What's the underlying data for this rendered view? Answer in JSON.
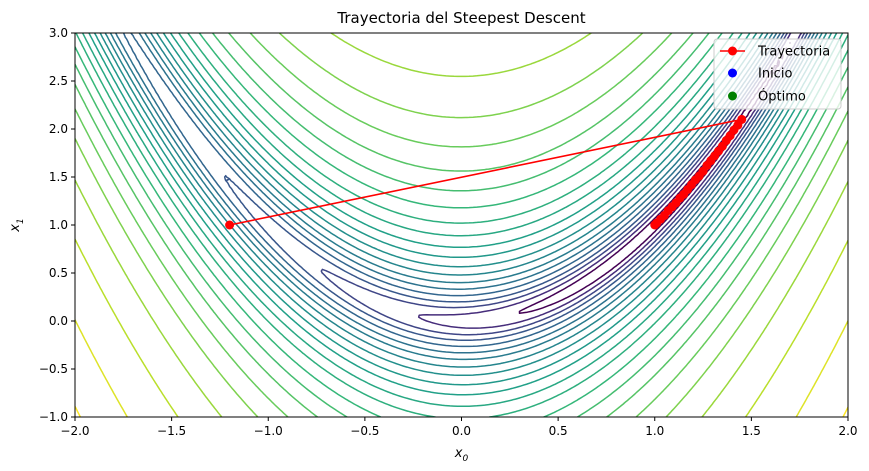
{
  "chart_data": {
    "type": "contour",
    "title": "Trayectoria del Steepest Descent",
    "xlabel_base": "x",
    "xlabel_sub": "0",
    "ylabel_base": "x",
    "ylabel_sub": "1",
    "xlim": [
      -2.0,
      2.0
    ],
    "ylim": [
      -1.0,
      3.0
    ],
    "xticks": [
      -2.0,
      -1.5,
      -1.0,
      -0.5,
      0.0,
      0.5,
      1.0,
      1.5,
      2.0
    ],
    "xtick_labels": [
      "−2.0",
      "−1.5",
      "−1.0",
      "−0.5",
      "0.0",
      "0.5",
      "1.0",
      "1.5",
      "2.0"
    ],
    "yticks": [
      -1.0,
      -0.5,
      0.0,
      0.5,
      1.0,
      1.5,
      2.0,
      2.5,
      3.0
    ],
    "ytick_labels": [
      "−1.0",
      "−0.5",
      "0.0",
      "0.5",
      "1.0",
      "1.5",
      "2.0",
      "2.5",
      "3.0"
    ],
    "contour_levels": [
      0.5,
      1.5,
      3,
      5,
      8,
      12,
      17,
      24,
      33,
      45,
      60,
      80,
      105,
      140,
      185,
      245,
      330,
      450,
      650,
      1000,
      1600,
      2400
    ],
    "colors": {
      "trajectory": "#ff0000",
      "start": "#0000ff",
      "optimum": "#008000",
      "colormap_low": "#440154",
      "colormap_high": "#fde725"
    },
    "trajectory": {
      "x": [
        -1.2,
        1.45,
        1.43,
        1.41,
        1.39,
        1.37,
        1.35,
        1.33,
        1.31,
        1.29,
        1.27,
        1.25,
        1.23,
        1.21,
        1.19,
        1.17,
        1.15,
        1.13,
        1.11,
        1.09,
        1.07,
        1.05,
        1.03,
        1.01,
        1.0
      ],
      "y": [
        1.0,
        2.1,
        2.04,
        1.99,
        1.93,
        1.88,
        1.82,
        1.77,
        1.72,
        1.67,
        1.62,
        1.56,
        1.51,
        1.47,
        1.42,
        1.37,
        1.32,
        1.28,
        1.23,
        1.19,
        1.15,
        1.1,
        1.06,
        1.02,
        1.0
      ]
    },
    "start": {
      "x": -1.2,
      "y": 1.0
    },
    "optimum": {
      "x": 1.0,
      "y": 1.0
    },
    "legend": {
      "position": "top-right",
      "entries": [
        {
          "label": "Trayectoria",
          "kind": "line-marker"
        },
        {
          "label": "Inicio",
          "kind": "dot-blue"
        },
        {
          "label": "Óptimo",
          "kind": "dot-green"
        }
      ]
    }
  }
}
